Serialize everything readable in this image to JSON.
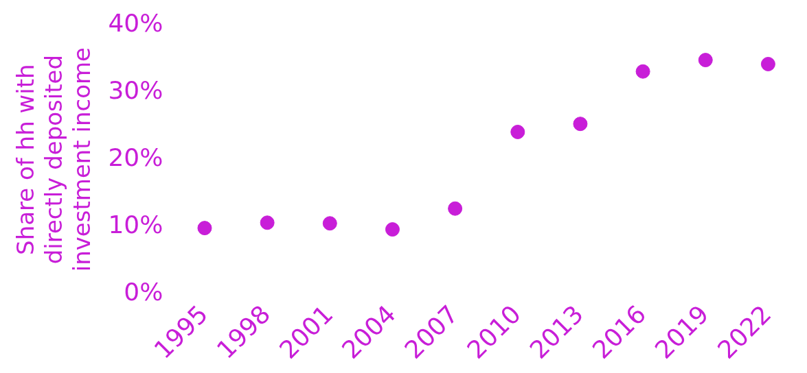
{
  "chart_data": {
    "type": "scatter",
    "ylabel": "Share of hh with\ndirectly deposited\ninvestment income",
    "categories": [
      "1995",
      "1998",
      "2001",
      "2004",
      "2007",
      "2010",
      "2013",
      "2016",
      "2019",
      "2022"
    ],
    "series": [
      {
        "color": "#c81ed8",
        "values": [
          9.8,
          10.6,
          10.5,
          9.6,
          12.7,
          24.1,
          25.3,
          33.1,
          34.8,
          34.2
        ]
      }
    ],
    "ylim": [
      0,
      40
    ],
    "yticks": [
      {
        "value": 0,
        "label": "0%"
      },
      {
        "value": 10,
        "label": "10%"
      },
      {
        "value": 20,
        "label": "20%"
      },
      {
        "value": 30,
        "label": "30%"
      },
      {
        "value": 40,
        "label": "40%"
      }
    ],
    "grid": false,
    "legend": false,
    "marker": "circle"
  }
}
